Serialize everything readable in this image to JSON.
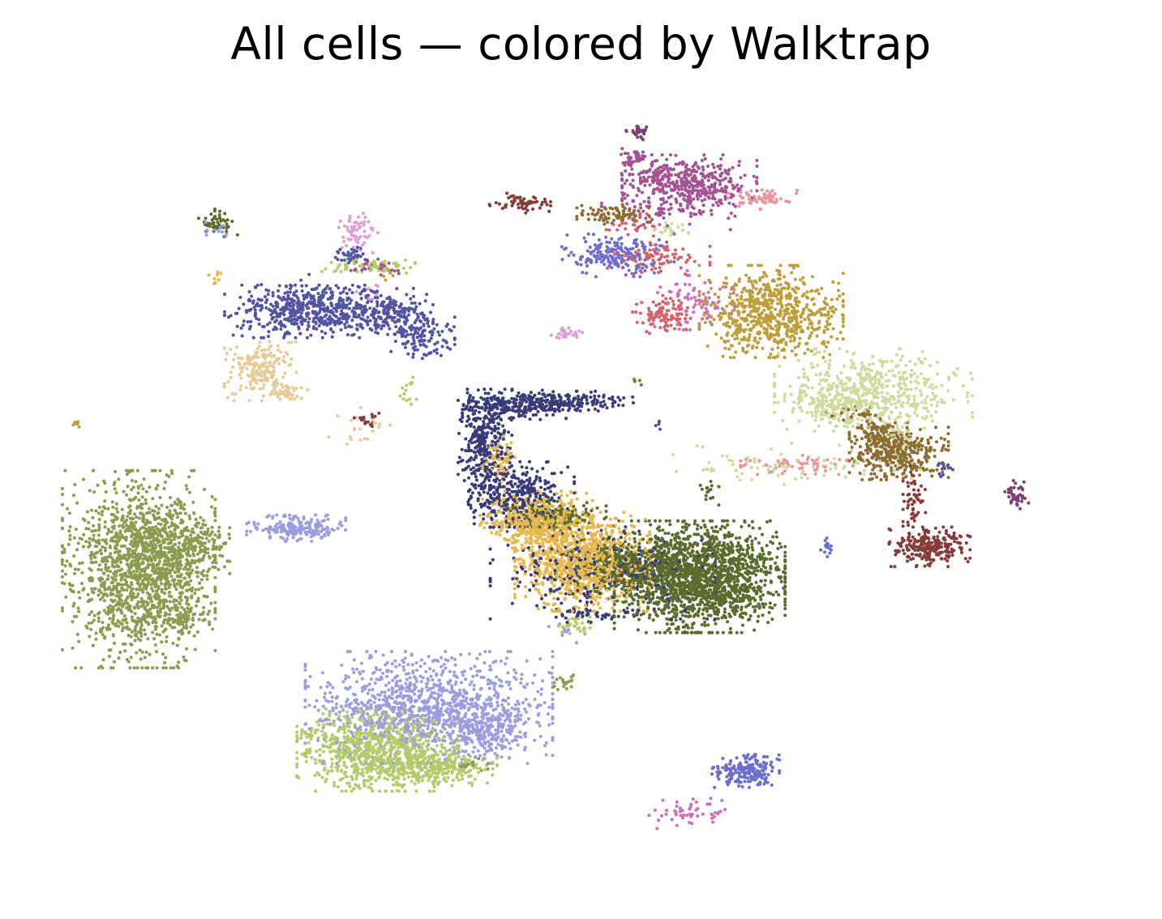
{
  "chart_data": {
    "type": "scatter",
    "title": "All cells — colored by Walktrap",
    "xlabel": "",
    "ylabel": "",
    "grid": false,
    "legend": "none",
    "xlim": [
      0,
      100
    ],
    "ylim": [
      0,
      100
    ],
    "point_radius": 2,
    "seed": 42,
    "note_units": "embedding coordinates (unlabeled axes); cluster blobs given as center x, y, spread sx, sy, point count, color",
    "series": [
      {
        "color": "#8b9c4e",
        "clusters": [
          [
            6.6,
            39.0,
            3.4,
            6.0,
            1400
          ],
          [
            10.0,
            41.5,
            2.5,
            2.8,
            300
          ],
          [
            10.2,
            32.5,
            1.5,
            1.0,
            90
          ],
          [
            12.5,
            42.5,
            1.2,
            1.0,
            60
          ],
          [
            48.2,
            24.0,
            0.7,
            0.5,
            20
          ],
          [
            39.0,
            12.8,
            0.8,
            0.4,
            20
          ]
        ]
      },
      {
        "color": "#9b9de0",
        "clusters": [
          [
            22.0,
            44.5,
            2.2,
            0.8,
            200
          ],
          [
            35.0,
            20.5,
            5.5,
            3.4,
            1100
          ],
          [
            40.5,
            17.0,
            1.8,
            1.5,
            200
          ],
          [
            14.3,
            84.5,
            0.6,
            0.5,
            15
          ],
          [
            48.5,
            30.5,
            0.8,
            0.6,
            10
          ]
        ]
      },
      {
        "color": "#b4cb6a",
        "clusters": [
          [
            30.0,
            14.8,
            3.6,
            2.5,
            850
          ],
          [
            35.5,
            12.5,
            2.8,
            1.2,
            260
          ],
          [
            28.8,
            79.5,
            2.2,
            0.5,
            70
          ],
          [
            33.0,
            63.0,
            0.4,
            1.0,
            15
          ],
          [
            49.0,
            31.5,
            0.8,
            0.5,
            30
          ]
        ]
      },
      {
        "color": "#5b6b2d",
        "clusters": [
          [
            61.5,
            38.0,
            3.8,
            3.4,
            1700
          ],
          [
            55.0,
            39.5,
            2.8,
            1.6,
            400
          ],
          [
            47.5,
            46.0,
            2.2,
            1.0,
            150
          ],
          [
            14.5,
            85.0,
            1.0,
            1.0,
            45
          ],
          [
            62.5,
            49.0,
            0.5,
            0.8,
            15
          ]
        ]
      },
      {
        "color": "#e7b749",
        "clusters": [
          [
            50.0,
            40.0,
            3.0,
            3.0,
            900
          ],
          [
            45.5,
            45.5,
            2.5,
            1.8,
            450
          ],
          [
            42.0,
            54.0,
            0.8,
            1.8,
            60
          ],
          [
            14.0,
            78.0,
            0.4,
            0.4,
            8
          ]
        ]
      },
      {
        "color": "#393b79",
        "clusters": [
          [
            40.5,
            56.5,
            1.2,
            3.0,
            300
          ],
          [
            44.0,
            61.0,
            2.6,
            0.9,
            250
          ],
          [
            49.5,
            61.5,
            2.5,
            0.6,
            120
          ],
          [
            43.5,
            49.0,
            2.6,
            2.0,
            350
          ],
          [
            52.0,
            38.5,
            5.0,
            2.8,
            350
          ],
          [
            50.5,
            33.0,
            1.8,
            0.5,
            40
          ]
        ]
      },
      {
        "color": "#5254a3",
        "clusters": [
          [
            23.8,
            73.5,
            4.0,
            1.6,
            450
          ],
          [
            31.0,
            73.5,
            2.0,
            1.4,
            180
          ],
          [
            34.0,
            70.5,
            1.6,
            1.5,
            130
          ],
          [
            22.0,
            74.5,
            2.2,
            1.8,
            120
          ],
          [
            27.5,
            81.0,
            0.8,
            0.5,
            40
          ],
          [
            85.5,
            52.5,
            0.4,
            0.5,
            15
          ],
          [
            57.5,
            58.5,
            0.2,
            0.4,
            5
          ]
        ]
      },
      {
        "color": "#e7cb94",
        "clusters": [
          [
            18.5,
            65.5,
            1.6,
            1.8,
            200
          ],
          [
            21.0,
            62.5,
            1.0,
            0.6,
            40
          ],
          [
            28.5,
            58.0,
            1.5,
            1.2,
            25
          ]
        ]
      },
      {
        "color": "#cedb9c",
        "clusters": [
          [
            78.5,
            63.0,
            4.4,
            2.5,
            500
          ],
          [
            75.0,
            61.0,
            2.0,
            1.3,
            150
          ],
          [
            71.0,
            53.0,
            5.5,
            1.3,
            90
          ],
          [
            58.5,
            84.5,
            1.0,
            0.5,
            20
          ],
          [
            81.5,
            56.5,
            1.0,
            0.6,
            30
          ]
        ]
      },
      {
        "color": "#8c6d31",
        "clusters": [
          [
            81.0,
            54.5,
            2.2,
            1.6,
            350
          ],
          [
            79.0,
            57.0,
            1.3,
            1.0,
            100
          ],
          [
            76.5,
            59.5,
            1.2,
            0.6,
            30
          ],
          [
            53.0,
            86.5,
            1.6,
            0.6,
            90
          ],
          [
            55.5,
            64.0,
            0.3,
            0.3,
            4
          ]
        ]
      },
      {
        "color": "#843c39",
        "clusters": [
          [
            84.0,
            42.0,
            1.8,
            1.2,
            250
          ],
          [
            82.5,
            48.5,
            0.5,
            2.2,
            60
          ],
          [
            44.0,
            88.0,
            1.4,
            0.6,
            60
          ],
          [
            29.0,
            59.0,
            0.6,
            0.4,
            20
          ]
        ]
      },
      {
        "color": "#a55194",
        "clusters": [
          [
            60.5,
            90.5,
            3.0,
            1.8,
            400
          ],
          [
            55.0,
            94.0,
            0.8,
            0.6,
            40
          ],
          [
            56.5,
            91.5,
            1.2,
            0.8,
            40
          ],
          [
            58.5,
            87.0,
            3.0,
            1.2,
            60
          ],
          [
            30.0,
            79.5,
            1.2,
            0.5,
            30
          ]
        ]
      },
      {
        "color": "#e7969c",
        "clusters": [
          [
            67.5,
            88.5,
            1.6,
            0.6,
            70
          ],
          [
            71.0,
            53.0,
            2.5,
            0.6,
            60
          ]
        ]
      },
      {
        "color": "#d6616b",
        "clusters": [
          [
            58.0,
            73.0,
            1.4,
            1.2,
            100
          ],
          [
            57.0,
            80.5,
            2.5,
            1.0,
            90
          ],
          [
            55.0,
            85.0,
            1.2,
            0.8,
            30
          ]
        ]
      },
      {
        "color": "#6b6ecf",
        "clusters": [
          [
            53.5,
            81.0,
            2.5,
            1.3,
            200
          ],
          [
            66.0,
            12.0,
            1.5,
            1.0,
            200
          ],
          [
            74.0,
            42.0,
            0.5,
            0.6,
            15
          ]
        ]
      },
      {
        "color": "#ce6dbd",
        "clusters": [
          [
            61.5,
            75.0,
            2.0,
            1.8,
            80
          ],
          [
            60.5,
            6.5,
            1.8,
            1.0,
            50
          ]
        ]
      },
      {
        "color": "#bd9e39",
        "clusters": [
          [
            68.5,
            73.5,
            3.2,
            2.8,
            700
          ],
          [
            0.5,
            58.5,
            0.2,
            0.2,
            6
          ],
          [
            31.0,
            78.5,
            0.4,
            0.4,
            6
          ]
        ]
      },
      {
        "color": "#7b4173",
        "clusters": [
          [
            92.5,
            49.0,
            0.6,
            0.9,
            40
          ],
          [
            55.5,
            97.5,
            0.6,
            0.5,
            30
          ]
        ]
      },
      {
        "color": "#de9ed6",
        "clusters": [
          [
            27.8,
            84.0,
            1.0,
            1.2,
            60
          ],
          [
            48.5,
            70.5,
            0.7,
            0.4,
            30
          ],
          [
            29.0,
            76.0,
            0.5,
            0.5,
            10
          ]
        ]
      }
    ]
  }
}
